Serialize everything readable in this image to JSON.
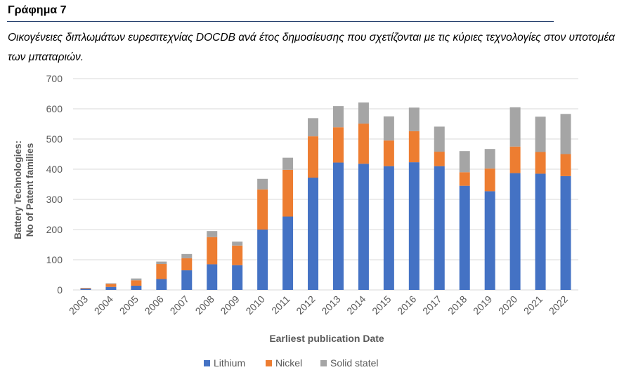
{
  "figure_label": "Γράφημα 7",
  "caption": "Οικογένειες διπλωμάτων ευρεσιτεχνίας DOCDB ανά έτος δημοσίευσης που σχετίζονται με τις κύριες τεχνολογίες στον υποτομέα  των μπαταριών.",
  "colors": {
    "lithium": "#4472c4",
    "nickel": "#ed7d31",
    "solid": "#a5a5a5",
    "grid": "#d9d9d9",
    "text": "#595959"
  },
  "chart_data": {
    "type": "bar",
    "stacked": true,
    "xlabel": "Earliest publication Date",
    "ylabel_line1": "Battery Technologies:",
    "ylabel_line2": "No of Patent families",
    "ylim": [
      0,
      700
    ],
    "yticks": [
      "0",
      "100",
      "200",
      "300",
      "400",
      "500",
      "600",
      "700"
    ],
    "grid": true,
    "legend_position": "bottom",
    "categories": [
      "2003",
      "2004",
      "2005",
      "2006",
      "2007",
      "2008",
      "2009",
      "2010",
      "2011",
      "2012",
      "2013",
      "2014",
      "2015",
      "2016",
      "2017",
      "2018",
      "2019",
      "2020",
      "2021",
      "2022"
    ],
    "series": [
      {
        "name": "Lithium",
        "values": [
          4,
          10,
          14,
          36,
          65,
          85,
          82,
          200,
          243,
          372,
          422,
          418,
          410,
          423,
          410,
          345,
          327,
          387,
          385,
          377
        ]
      },
      {
        "name": "Nickel",
        "values": [
          2,
          10,
          18,
          50,
          40,
          90,
          65,
          133,
          155,
          137,
          117,
          133,
          85,
          103,
          48,
          45,
          75,
          88,
          72,
          73
        ]
      },
      {
        "name": "Solid statel",
        "values": [
          1,
          2,
          6,
          8,
          14,
          20,
          13,
          35,
          40,
          60,
          70,
          70,
          80,
          78,
          83,
          70,
          65,
          130,
          117,
          133
        ]
      }
    ]
  }
}
